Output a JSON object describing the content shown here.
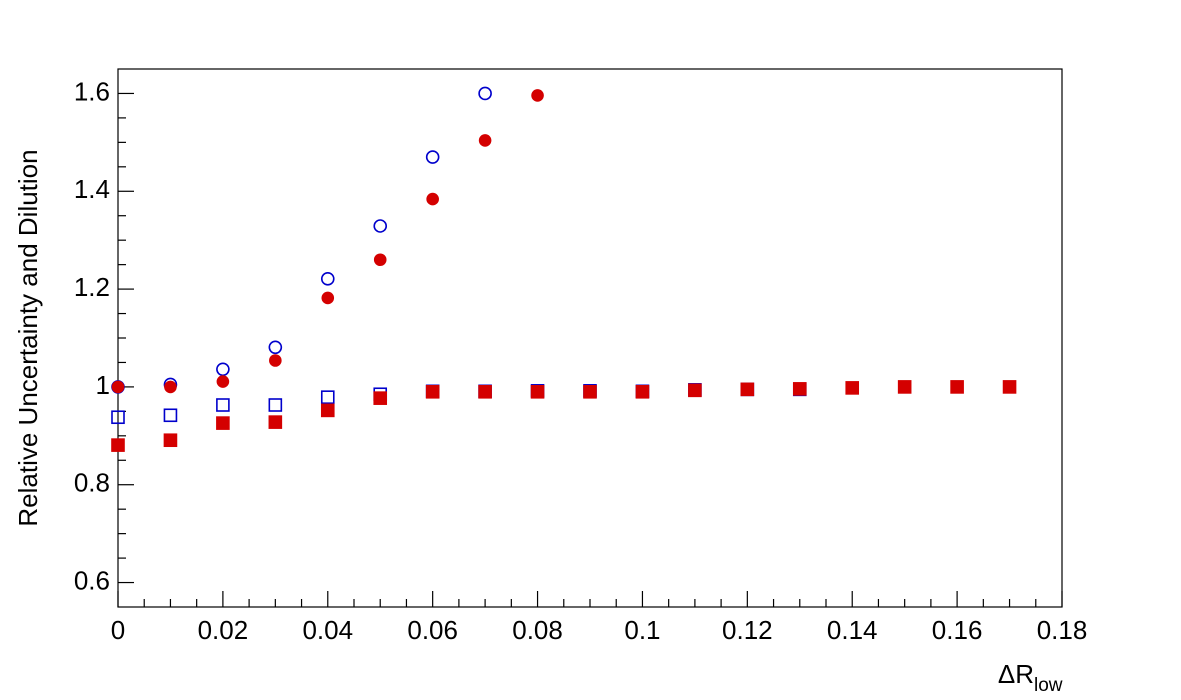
{
  "chart_data": {
    "type": "scatter",
    "xlabel": "ΔR",
    "xlabel_sub": "low",
    "ylabel": "Relative Uncertainty and Dilution",
    "xlim": [
      0,
      0.18
    ],
    "ylim": [
      0.55,
      1.65
    ],
    "xticks": [
      0,
      0.02,
      0.04,
      0.06,
      0.08,
      0.1,
      0.12,
      0.14,
      0.16,
      0.18
    ],
    "yticks": [
      0.6,
      0.8,
      1,
      1.2,
      1.4,
      1.6
    ],
    "xminor": 4,
    "yminor": 4,
    "grid": false,
    "series": [
      {
        "color": "#0000cc",
        "marker": "circle-open",
        "x": [
          0,
          0.01,
          0.02,
          0.03,
          0.04,
          0.05,
          0.06,
          0.07
        ],
        "values": [
          1.0,
          1.005,
          1.036,
          1.081,
          1.221,
          1.329,
          1.47,
          1.6
        ]
      },
      {
        "color": "#d40000",
        "marker": "circle-filled",
        "x": [
          0,
          0.01,
          0.02,
          0.03,
          0.04,
          0.05,
          0.06,
          0.07,
          0.08
        ],
        "values": [
          1.0,
          1.0,
          1.011,
          1.054,
          1.182,
          1.26,
          1.384,
          1.504,
          1.596
        ]
      },
      {
        "color": "#0000cc",
        "marker": "square-open",
        "x": [
          0,
          0.01,
          0.02,
          0.03,
          0.04,
          0.05,
          0.06,
          0.07,
          0.08,
          0.09,
          0.1,
          0.11,
          0.12,
          0.13
        ],
        "values": [
          0.938,
          0.942,
          0.963,
          0.963,
          0.979,
          0.985,
          0.991,
          0.991,
          0.992,
          0.992,
          0.991,
          0.994,
          0.995,
          0.995
        ]
      },
      {
        "color": "#d40000",
        "marker": "square-filled",
        "x": [
          0,
          0.01,
          0.02,
          0.03,
          0.04,
          0.05,
          0.06,
          0.07,
          0.08,
          0.09,
          0.1,
          0.11,
          0.12,
          0.13,
          0.14,
          0.15,
          0.16,
          0.17
        ],
        "values": [
          0.881,
          0.891,
          0.926,
          0.928,
          0.952,
          0.977,
          0.99,
          0.99,
          0.99,
          0.99,
          0.99,
          0.993,
          0.995,
          0.996,
          0.998,
          1.0,
          1.0,
          1.0
        ]
      }
    ]
  }
}
